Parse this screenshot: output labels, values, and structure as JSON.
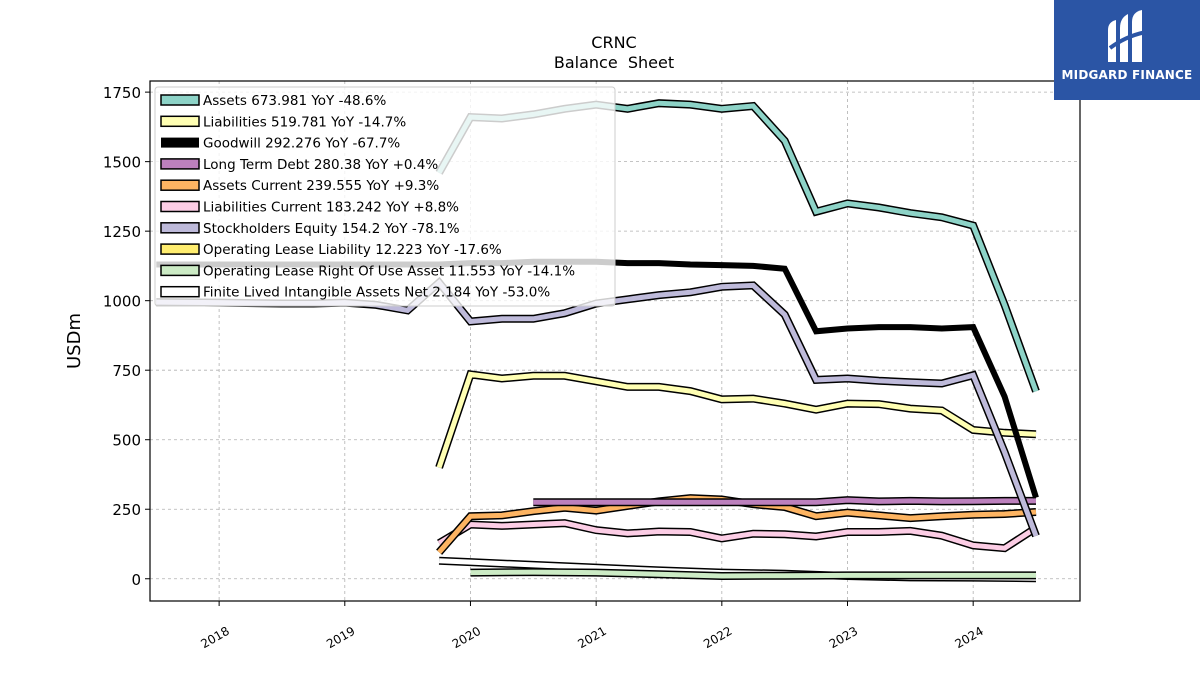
{
  "chart_data": {
    "type": "line",
    "title": "CRNC",
    "subtitle": "Balance  Sheet",
    "ylabel": "USDm",
    "xlabel": "",
    "ylim": [
      -80,
      1790
    ],
    "xlim": [
      2017.45,
      2024.85
    ],
    "yticks": [
      0,
      250,
      500,
      750,
      1000,
      1250,
      1500,
      1750
    ],
    "xticks": [
      2018,
      2019,
      2020,
      2021,
      2022,
      2023,
      2024
    ],
    "grid": true,
    "legend_position": "top-left",
    "series": [
      {
        "name": "Assets  673.981 YoY -48.6%",
        "color": "#8dd3c7",
        "width": 5,
        "x": [
          2019.75,
          2020.0,
          2020.25,
          2020.5,
          2020.75,
          2021.0,
          2021.25,
          2021.5,
          2021.75,
          2022.0,
          2022.25,
          2022.5,
          2022.75,
          2023.0,
          2023.25,
          2023.5,
          2023.75,
          2024.0,
          2024.25,
          2024.5
        ],
        "y": [
          1460,
          1660,
          1655,
          1670,
          1690,
          1705,
          1690,
          1710,
          1705,
          1690,
          1700,
          1575,
          1320,
          1350,
          1335,
          1315,
          1300,
          1270,
          985,
          674
        ]
      },
      {
        "name": "Liabilities  519.781 YoY -14.7%",
        "color": "#ffffb3",
        "width": 5,
        "x": [
          2019.75,
          2020.0,
          2020.25,
          2020.5,
          2020.75,
          2021.0,
          2021.25,
          2021.5,
          2021.75,
          2022.0,
          2022.25,
          2022.5,
          2022.75,
          2023.0,
          2023.25,
          2023.5,
          2023.75,
          2024.0,
          2024.25,
          2024.5
        ],
        "y": [
          400,
          735,
          720,
          730,
          730,
          710,
          690,
          690,
          675,
          645,
          648,
          630,
          608,
          630,
          628,
          612,
          605,
          535,
          525,
          520
        ]
      },
      {
        "name": "Goodwill  292.276 YoY -67.7%",
        "color": "#000000",
        "width": 6,
        "x": [
          2017.5,
          2018.0,
          2018.5,
          2018.75,
          2019.0,
          2019.25,
          2019.5,
          2019.75,
          2020.0,
          2020.25,
          2020.5,
          2020.75,
          2021.0,
          2021.25,
          2021.5,
          2021.75,
          2022.0,
          2022.25,
          2022.5,
          2022.75,
          2023.0,
          2023.25,
          2023.5,
          2023.75,
          2024.0,
          2024.25,
          2024.5
        ],
        "y": [
          1130,
          1130,
          1130,
          1130,
          1130,
          1130,
          1130,
          1130,
          1135,
          1135,
          1140,
          1140,
          1140,
          1135,
          1135,
          1130,
          1128,
          1125,
          1115,
          890,
          900,
          905,
          905,
          900,
          905,
          655,
          292
        ]
      },
      {
        "name": "Long Term Debt  280.38 YoY +0.4%",
        "color": "#bc80bd",
        "width": 5,
        "x": [
          2020.5,
          2020.75,
          2021.0,
          2021.25,
          2021.5,
          2021.75,
          2022.0,
          2022.25,
          2022.5,
          2022.75,
          2023.0,
          2023.25,
          2023.5,
          2023.75,
          2024.0,
          2024.25,
          2024.5
        ],
        "y": [
          275,
          275,
          275,
          275,
          275,
          275,
          275,
          275,
          275,
          275,
          283,
          278,
          280,
          278,
          279,
          280,
          280
        ]
      },
      {
        "name": "Assets Current  239.555 YoY +9.3%",
        "color": "#fdb462",
        "width": 5,
        "x": [
          2019.75,
          2020.0,
          2020.25,
          2020.5,
          2020.75,
          2021.0,
          2021.25,
          2021.5,
          2021.75,
          2022.0,
          2022.25,
          2022.5,
          2022.75,
          2023.0,
          2023.25,
          2023.5,
          2023.75,
          2024.0,
          2024.25,
          2024.5
        ],
        "y": [
          95,
          225,
          228,
          243,
          255,
          245,
          262,
          278,
          290,
          285,
          268,
          258,
          225,
          238,
          228,
          218,
          225,
          230,
          233,
          240
        ]
      },
      {
        "name": "Liabilities Current  183.242 YoY +8.8%",
        "color": "#fccde5",
        "width": 5,
        "x": [
          2019.75,
          2020.0,
          2020.25,
          2020.5,
          2020.75,
          2021.0,
          2021.25,
          2021.5,
          2021.75,
          2022.0,
          2022.25,
          2022.5,
          2022.75,
          2023.0,
          2023.25,
          2023.5,
          2023.75,
          2024.0,
          2024.25,
          2024.5
        ],
        "y": [
          128,
          195,
          190,
          195,
          200,
          175,
          163,
          170,
          168,
          145,
          162,
          160,
          152,
          168,
          168,
          172,
          155,
          120,
          110,
          183
        ]
      },
      {
        "name": "Stockholders Equity  154.2 YoY -78.1%",
        "color": "#bebada",
        "width": 5,
        "x": [
          2017.5,
          2018.0,
          2018.5,
          2018.75,
          2019.0,
          2019.25,
          2019.5,
          2019.75,
          2020.0,
          2020.25,
          2020.5,
          2020.75,
          2021.0,
          2021.25,
          2021.5,
          2021.75,
          2022.0,
          2022.25,
          2022.5,
          2022.75,
          2023.0,
          2023.25,
          2023.5,
          2023.75,
          2024.0,
          2024.25,
          2024.5
        ],
        "y": [
          995,
          993,
          990,
          990,
          993,
          985,
          965,
          1065,
          925,
          935,
          935,
          955,
          990,
          1005,
          1020,
          1030,
          1050,
          1055,
          950,
          715,
          720,
          712,
          707,
          702,
          732,
          455,
          154
        ]
      },
      {
        "name": "Operating Lease Liability  12.223 YoY -17.6%",
        "color": "#ffed6f",
        "width": 5,
        "x": [],
        "y": []
      },
      {
        "name": "Operating Lease Right Of Use Asset  11.553 YoY -14.1%",
        "color": "#ccebc5",
        "width": 5,
        "x": [
          2020.0,
          2020.5,
          2021.0,
          2021.5,
          2022.0,
          2022.5,
          2023.0,
          2023.5,
          2024.0,
          2024.5
        ],
        "y": [
          22,
          24,
          22,
          16,
          10,
          11,
          12,
          12,
          12,
          12
        ]
      },
      {
        "name": "Finite Lived Intangible Assets Net  2.184 YoY -53.0%",
        "color": "#ffffff",
        "width": 5,
        "x": [
          2019.75,
          2020.0,
          2020.5,
          2021.0,
          2021.5,
          2022.0,
          2022.5,
          2023.0,
          2023.5,
          2024.0,
          2024.5
        ],
        "y": [
          65,
          60,
          50,
          40,
          30,
          22,
          18,
          10,
          5,
          4,
          2
        ]
      }
    ]
  },
  "logo": {
    "name": "MIDGARD FINANCE",
    "color": "#2b55a5"
  }
}
